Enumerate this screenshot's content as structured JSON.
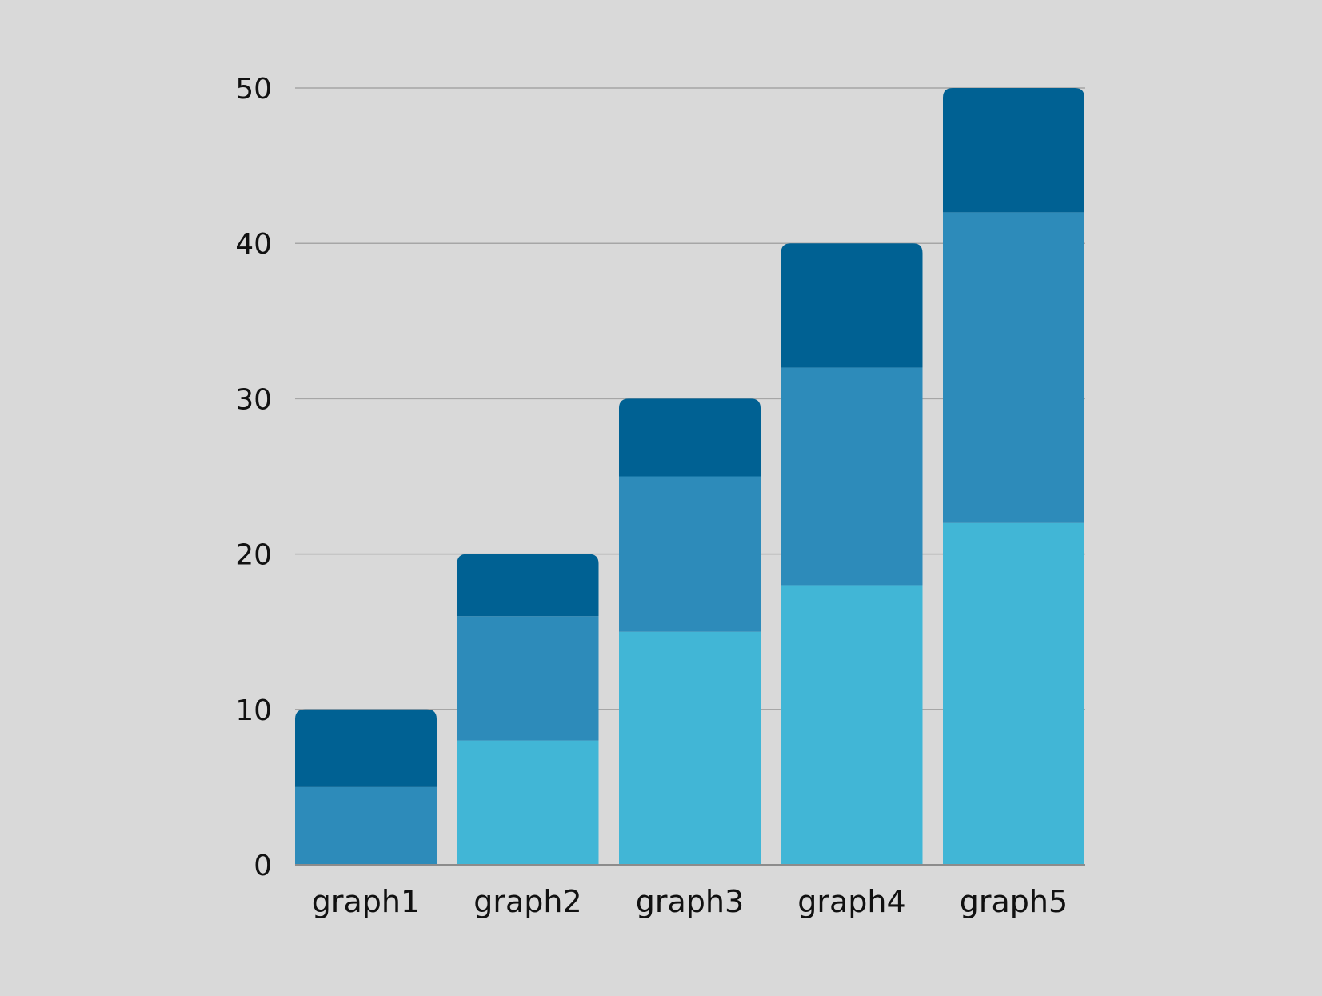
{
  "chart_data": {
    "type": "bar",
    "stacked": true,
    "categories": [
      "graph1",
      "graph2",
      "graph3",
      "graph4",
      "graph5"
    ],
    "series": [
      {
        "values": [
          0,
          8,
          15,
          18,
          22
        ],
        "color": "#41b6d6"
      },
      {
        "values": [
          5,
          8,
          10,
          14,
          20
        ],
        "color": "#2d8bba"
      },
      {
        "values": [
          5,
          4,
          5,
          8,
          8
        ],
        "color": "#006193"
      }
    ],
    "ylim": [
      0,
      50
    ],
    "yticks": [
      0,
      10,
      20,
      30,
      40,
      50
    ],
    "grid": true,
    "title": "",
    "xlabel": "",
    "ylabel": ""
  },
  "colors": {
    "background": "#d9d9d9",
    "gridline": "#a6a6a6",
    "axis": "#8c8c8c"
  }
}
